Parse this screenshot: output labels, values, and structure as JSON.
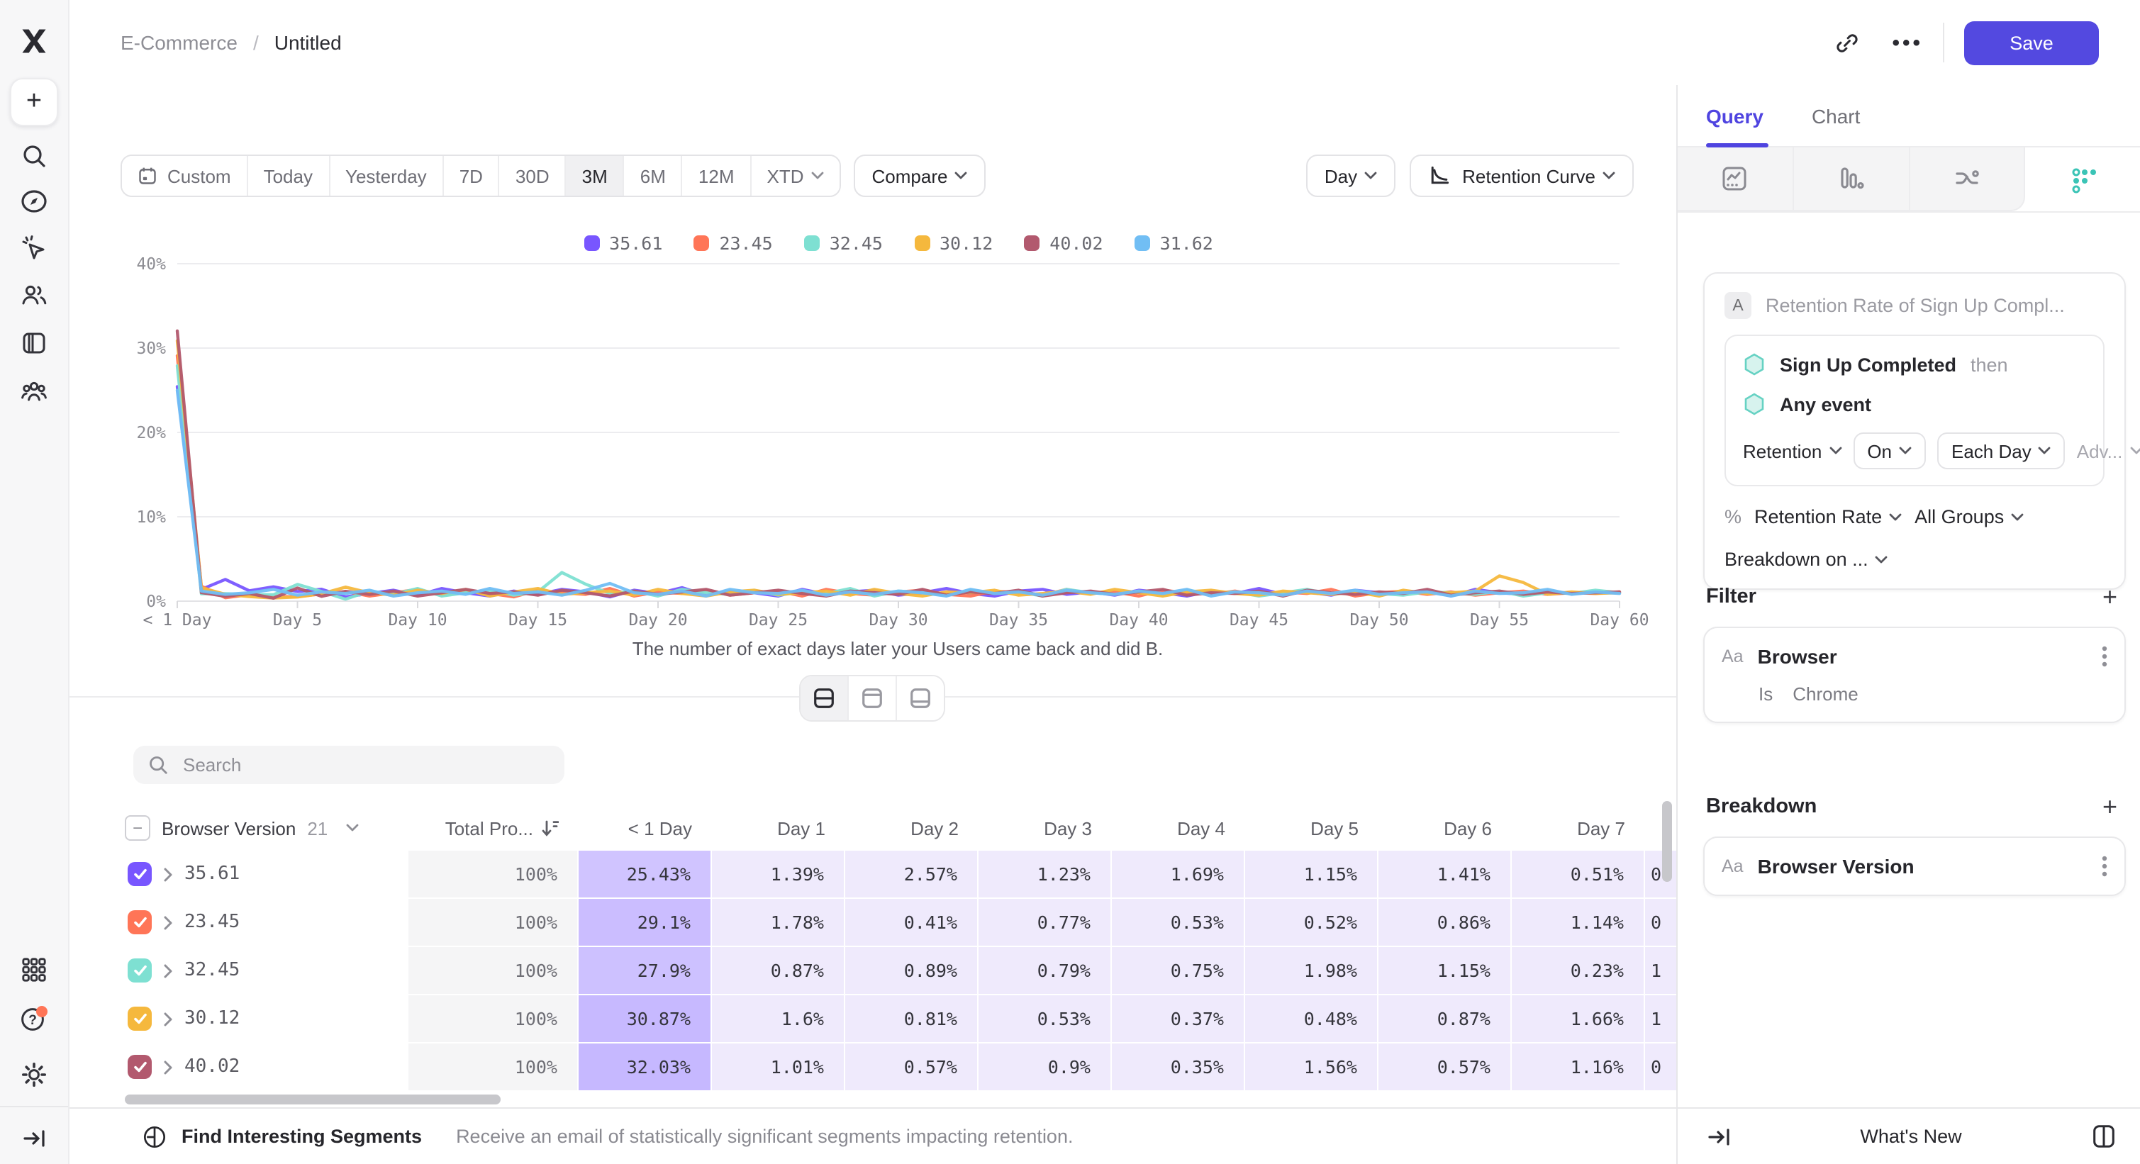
{
  "header": {
    "breadcrumb": {
      "root": "E-Commerce",
      "separator": "/",
      "current": "Untitled"
    },
    "save_label": "Save"
  },
  "sidebar": {
    "icons": [
      "mixpanel-logo",
      "create-plus",
      "search",
      "discover-compass",
      "ai-cursor",
      "users",
      "boards",
      "cohorts",
      "apps-grid",
      "help",
      "settings",
      "collapse-sidebar"
    ]
  },
  "toolbar": {
    "date_ranges": [
      "Custom",
      "Today",
      "Yesterday",
      "7D",
      "30D",
      "3M",
      "6M",
      "12M",
      "XTD"
    ],
    "selected_range": "3M",
    "compare_label": "Compare",
    "granularity_label": "Day",
    "chart_type_label": "Retention Curve"
  },
  "chart_data": {
    "type": "line",
    "title": "Retention Curve",
    "caption": "The number of exact days later your Users came back and did B.",
    "x_tick_labels": [
      "< 1 Day",
      "Day 5",
      "Day 10",
      "Day 15",
      "Day 20",
      "Day 25",
      "Day 30",
      "Day 35",
      "Day 40",
      "Day 45",
      "Day 50",
      "Day 55",
      "Day 60"
    ],
    "x_tick_days": [
      0,
      5,
      10,
      15,
      20,
      25,
      30,
      35,
      40,
      45,
      50,
      55,
      60
    ],
    "y_tick_labels": [
      "0%",
      "10%",
      "20%",
      "30%",
      "40%"
    ],
    "ylim": [
      0,
      40
    ],
    "x_range_days": [
      0,
      60
    ],
    "legend_position": "top",
    "grid": true,
    "series": [
      {
        "name": "35.61",
        "color": "#7856FF",
        "values": [
          25.43,
          1.39,
          2.57,
          1.23,
          1.69,
          1.15,
          1.41,
          0.51,
          0.9,
          1.3,
          0.7,
          1.5,
          1.0,
          0.6,
          1.2,
          0.8,
          1.4,
          1.1,
          0.5,
          1.3,
          0.9,
          1.6,
          0.7,
          1.2,
          1.0,
          0.6,
          1.4,
          0.8,
          1.1,
          1.3,
          0.7,
          1.0,
          1.5,
          0.9,
          0.6,
          1.2,
          1.4,
          0.8,
          1.1,
          0.7,
          1.3,
          1.0,
          0.6,
          1.2,
          0.9,
          1.5,
          0.8,
          1.1,
          0.7,
          1.3,
          1.0,
          0.9,
          1.2,
          0.6,
          1.4,
          1.0,
          0.8,
          1.2,
          0.9,
          1.1,
          1.0
        ]
      },
      {
        "name": "23.45",
        "color": "#FF7557",
        "values": [
          29.1,
          1.78,
          0.41,
          0.77,
          0.53,
          0.52,
          0.86,
          1.14,
          0.6,
          1.0,
          1.4,
          0.7,
          1.2,
          0.9,
          0.5,
          1.3,
          1.0,
          0.8,
          1.5,
          0.6,
          1.1,
          0.9,
          1.3,
          0.7,
          1.0,
          1.2,
          0.6,
          1.4,
          0.9,
          0.7,
          1.1,
          1.3,
          0.8,
          0.6,
          1.2,
          1.0,
          0.7,
          1.4,
          0.9,
          1.1,
          0.6,
          1.3,
          1.0,
          0.8,
          1.2,
          0.7,
          1.1,
          0.9,
          1.4,
          0.6,
          1.0,
          1.2,
          0.8,
          1.1,
          0.7,
          1.0,
          1.2,
          0.8,
          1.0,
          0.9,
          1.1
        ]
      },
      {
        "name": "32.45",
        "color": "#7EE0D2",
        "values": [
          27.9,
          0.87,
          0.89,
          0.79,
          0.75,
          1.98,
          1.15,
          0.23,
          1.2,
          0.8,
          1.5,
          0.6,
          1.0,
          1.3,
          0.7,
          1.1,
          3.4,
          2.0,
          0.9,
          1.2,
          0.6,
          1.4,
          1.0,
          0.8,
          1.3,
          0.7,
          1.1,
          0.9,
          1.5,
          0.6,
          1.2,
          1.0,
          0.7,
          1.3,
          0.9,
          1.1,
          0.6,
          1.4,
          1.0,
          0.8,
          1.2,
          0.7,
          1.3,
          0.9,
          1.1,
          0.6,
          1.0,
          1.4,
          0.8,
          1.2,
          0.9,
          0.7,
          1.1,
          1.0,
          0.8,
          1.2,
          0.6,
          1.0,
          0.9,
          1.3,
          1.0
        ]
      },
      {
        "name": "30.12",
        "color": "#F5B83D",
        "values": [
          30.87,
          1.6,
          0.81,
          0.53,
          0.37,
          0.48,
          0.87,
          1.66,
          1.0,
          0.7,
          1.3,
          0.9,
          1.4,
          0.6,
          1.1,
          1.5,
          0.8,
          1.0,
          1.2,
          0.7,
          1.4,
          0.9,
          0.6,
          1.1,
          1.3,
          0.8,
          1.0,
          1.2,
          0.7,
          1.4,
          0.9,
          0.6,
          1.1,
          1.0,
          1.3,
          0.7,
          0.9,
          1.2,
          0.8,
          1.4,
          1.0,
          0.6,
          1.1,
          1.3,
          0.9,
          0.7,
          1.2,
          1.0,
          0.8,
          1.1,
          0.6,
          1.3,
          0.9,
          1.0,
          1.2,
          3.0,
          2.2,
          0.8,
          1.1,
          0.9,
          1.0
        ]
      },
      {
        "name": "40.02",
        "color": "#B2596E",
        "values": [
          32.03,
          1.01,
          0.57,
          0.9,
          0.35,
          1.56,
          0.57,
          1.16,
          0.8,
          1.2,
          0.6,
          1.0,
          1.4,
          0.9,
          1.1,
          0.7,
          1.3,
          1.0,
          0.6,
          1.2,
          0.8,
          1.1,
          1.4,
          0.7,
          1.0,
          1.3,
          0.9,
          0.6,
          1.2,
          1.0,
          0.8,
          1.4,
          0.7,
          1.1,
          0.9,
          1.3,
          0.6,
          1.0,
          1.2,
          0.8,
          1.1,
          1.4,
          0.7,
          1.0,
          0.9,
          1.2,
          0.6,
          1.3,
          1.0,
          0.8,
          1.1,
          0.9,
          1.4,
          0.7,
          1.0,
          1.2,
          0.8,
          1.1,
          0.9,
          1.0,
          1.1
        ]
      },
      {
        "name": "31.62",
        "color": "#71BEF4",
        "values": [
          25.0,
          1.2,
          0.8,
          1.0,
          1.4,
          0.7,
          1.1,
          0.9,
          1.3,
          0.6,
          1.0,
          1.2,
          0.8,
          1.5,
          0.9,
          1.1,
          0.7,
          1.3,
          2.1,
          1.0,
          0.8,
          1.2,
          0.6,
          1.4,
          1.0,
          0.9,
          1.3,
          0.7,
          1.1,
          0.8,
          1.2,
          1.0,
          0.6,
          1.4,
          0.9,
          1.1,
          0.7,
          1.3,
          1.0,
          0.8,
          1.2,
          0.9,
          1.4,
          0.6,
          1.1,
          1.0,
          0.7,
          1.2,
          0.9,
          1.3,
          0.8,
          1.0,
          1.1,
          0.6,
          1.2,
          0.9,
          1.0,
          1.4,
          0.8,
          1.1,
          0.9
        ]
      }
    ]
  },
  "view_toggles": [
    "split-view",
    "top-panel-view",
    "bottom-panel-view"
  ],
  "view_toggle_selected": "split-view",
  "search": {
    "placeholder": "Search"
  },
  "table": {
    "group_column": {
      "label": "Browser Version",
      "count": "21"
    },
    "total_column": "Total Pro...",
    "columns": [
      "< 1 Day",
      "Day 1",
      "Day 2",
      "Day 3",
      "Day 4",
      "Day 5",
      "Day 6",
      "Day 7"
    ],
    "rows": [
      {
        "label": "35.61",
        "color": "#7856FF",
        "total": "100%",
        "values": [
          "25.43%",
          "1.39%",
          "2.57%",
          "1.23%",
          "1.69%",
          "1.15%",
          "1.41%",
          "0.51%"
        ],
        "overflow": "0"
      },
      {
        "label": "23.45",
        "color": "#FF7557",
        "total": "100%",
        "values": [
          "29.1%",
          "1.78%",
          "0.41%",
          "0.77%",
          "0.53%",
          "0.52%",
          "0.86%",
          "1.14%"
        ],
        "overflow": "0"
      },
      {
        "label": "32.45",
        "color": "#7EE0D2",
        "total": "100%",
        "values": [
          "27.9%",
          "0.87%",
          "0.89%",
          "0.79%",
          "0.75%",
          "1.98%",
          "1.15%",
          "0.23%"
        ],
        "overflow": "1"
      },
      {
        "label": "30.12",
        "color": "#F5B83D",
        "total": "100%",
        "values": [
          "30.87%",
          "1.6%",
          "0.81%",
          "0.53%",
          "0.37%",
          "0.48%",
          "0.87%",
          "1.66%"
        ],
        "overflow": "1"
      },
      {
        "label": "40.02",
        "color": "#B2596E",
        "total": "100%",
        "values": [
          "32.03%",
          "1.01%",
          "0.57%",
          "0.9%",
          "0.35%",
          "1.56%",
          "0.57%",
          "1.16%"
        ],
        "overflow": "0"
      }
    ]
  },
  "footer": {
    "find_segments_label": "Find Interesting Segments",
    "find_segments_desc": "Receive an email of statistically significant segments impacting retention.",
    "whats_new": "What's New"
  },
  "side_panel": {
    "tabs": [
      {
        "label": "Query",
        "active": true
      },
      {
        "label": "Chart",
        "active": false
      }
    ],
    "report_icons": [
      "insights-icon",
      "funnels-icon",
      "flows-icon",
      "retention-icon"
    ],
    "selected_report": "retention-icon",
    "accent_color": "#4F44E0",
    "retention_icon_color": "#3BC4B6",
    "query": {
      "step_label": "A",
      "title": "Retention Rate of Sign Up Compl...",
      "first_event": "Sign Up Completed",
      "then_label": "then",
      "returning_event": "Any event",
      "retention_label": "Retention",
      "on_label": "On",
      "each_label": "Each Day",
      "adv_label": "Adv...",
      "measure_prefix": "%",
      "measure": "Retention Rate",
      "groups": "All Groups",
      "breakdown_on": "Breakdown on ..."
    },
    "filter": {
      "title": "Filter",
      "type_icon": "Aa",
      "property": "Browser",
      "operator": "Is",
      "value": "Chrome"
    },
    "breakdown": {
      "title": "Breakdown",
      "type_icon": "Aa",
      "property": "Browser Version"
    }
  }
}
